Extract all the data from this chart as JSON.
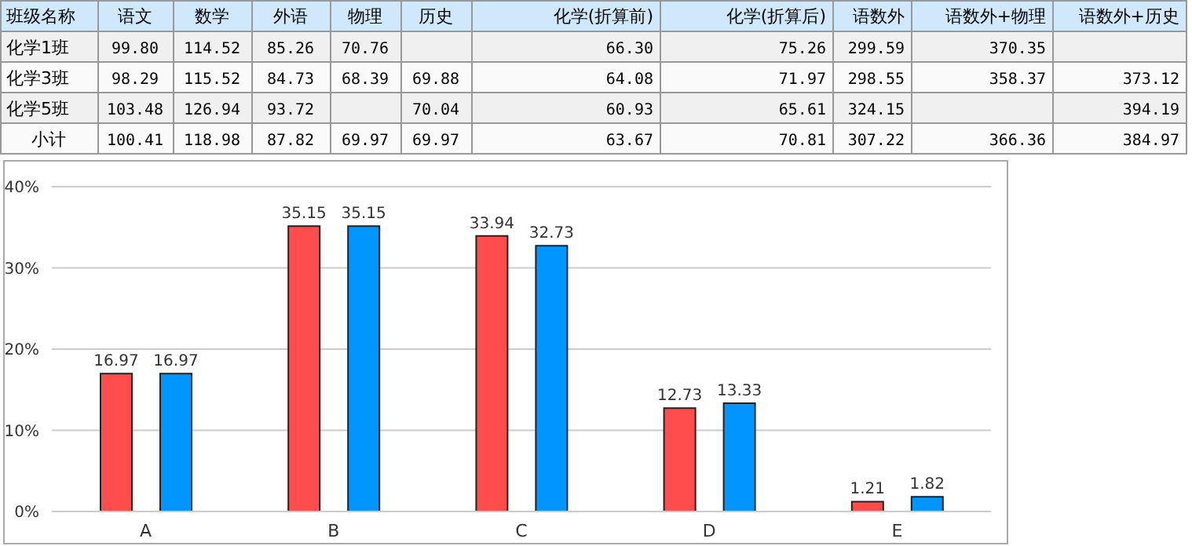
{
  "chart_data": [
    {
      "type": "other",
      "ylabel": "班级名称",
      "categories": [
        "语文",
        "数学",
        "外语",
        "物理",
        "历史",
        "化学(折算前)",
        "化学(折算后)",
        "语数外",
        "语数外+物理",
        "语数外+历史"
      ],
      "y_categories": [
        "化学1班",
        "化学3班",
        "化学5班",
        "小计"
      ],
      "cell_labels": [
        [
          "99.80",
          "114.52",
          "85.26",
          "70.76",
          null,
          "66.30",
          "75.26",
          "299.59",
          "370.35",
          null
        ],
        [
          "98.29",
          "115.52",
          "84.73",
          "68.39",
          "69.88",
          "64.08",
          "71.97",
          "298.55",
          "358.37",
          "373.12"
        ],
        [
          "103.48",
          "126.94",
          "93.72",
          null,
          "70.04",
          "60.93",
          "65.61",
          "324.15",
          null,
          "394.19"
        ],
        [
          "100.41",
          "118.98",
          "87.82",
          "69.97",
          "69.97",
          "63.67",
          "70.81",
          "307.22",
          "366.36",
          "384.97"
        ]
      ]
    },
    {
      "type": "bar",
      "categories": [
        "A",
        "B",
        "C",
        "D",
        "E"
      ],
      "series": [
        {
          "color": "#ff4d4d",
          "values": [
            16.97,
            35.15,
            33.94,
            12.73,
            1.21
          ]
        },
        {
          "color": "#0095ff",
          "values": [
            16.97,
            35.15,
            32.73,
            13.33,
            1.82
          ]
        }
      ],
      "ylim": [
        0,
        40
      ],
      "yticks": [
        {
          "value": 0,
          "label": "0%"
        },
        {
          "value": 10,
          "label": "10%"
        },
        {
          "value": 20,
          "label": "20%"
        },
        {
          "value": 30,
          "label": "30%"
        },
        {
          "value": 40,
          "label": "40%"
        }
      ],
      "grid": "y",
      "data_labels": true
    }
  ]
}
